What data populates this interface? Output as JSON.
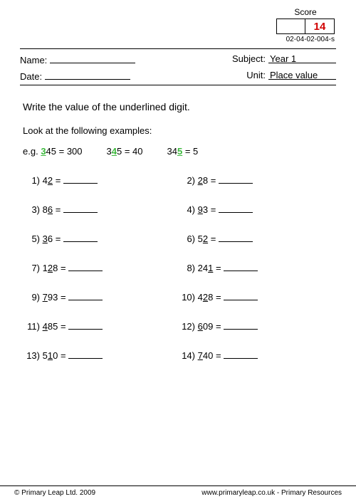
{
  "score": {
    "label": "Score",
    "value": "14"
  },
  "worksheet_id": "02-04-02-004-s",
  "header": {
    "name_label": "Name:",
    "date_label": "Date:",
    "subject_label": "Subject:",
    "subject_value": "Year 1",
    "unit_label": "Unit:",
    "unit_value": "Place value"
  },
  "instruction": "Write the value of the underlined digit.",
  "examples_label": "Look at the following examples:",
  "examples": {
    "prefix": "e.g.",
    "items": [
      {
        "pre": "",
        "u": "3",
        "post": "45 = 300"
      },
      {
        "pre": "3",
        "u": "4",
        "post": "5 = 40"
      },
      {
        "pre": "34",
        "u": "5",
        "post": " = 5"
      }
    ]
  },
  "questions": [
    [
      {
        "n": "1)",
        "pre": "4",
        "u": "2",
        "post": ""
      },
      {
        "n": "2)",
        "pre": "",
        "u": "2",
        "post": "8"
      }
    ],
    [
      {
        "n": "3)",
        "pre": "8",
        "u": "6",
        "post": ""
      },
      {
        "n": "4)",
        "pre": "",
        "u": "9",
        "post": "3"
      }
    ],
    [
      {
        "n": "5)",
        "pre": "",
        "u": "3",
        "post": "6"
      },
      {
        "n": "6)",
        "pre": "5",
        "u": "2",
        "post": ""
      }
    ],
    [
      {
        "n": "7)",
        "pre": "1",
        "u": "2",
        "post": "8"
      },
      {
        "n": "8)",
        "pre": "24",
        "u": "1",
        "post": ""
      }
    ],
    [
      {
        "n": "9)",
        "pre": "",
        "u": "7",
        "post": "93"
      },
      {
        "n": "10)",
        "pre": "4",
        "u": "2",
        "post": "8"
      }
    ],
    [
      {
        "n": "11)",
        "pre": "",
        "u": "4",
        "post": "85"
      },
      {
        "n": "12)",
        "pre": "",
        "u": "6",
        "post": "09"
      }
    ],
    [
      {
        "n": "13)",
        "pre": "5",
        "u": "1",
        "post": "0"
      },
      {
        "n": "14)",
        "pre": "",
        "u": "7",
        "post": "40"
      }
    ]
  ],
  "footer": {
    "left": "© Primary Leap Ltd. 2009",
    "right": "www.primaryleap.co.uk  -  Primary Resources"
  },
  "colors": {
    "underline_digit": "#3cb83c",
    "score_value": "#d00000",
    "text": "#000000",
    "background": "#ffffff"
  }
}
